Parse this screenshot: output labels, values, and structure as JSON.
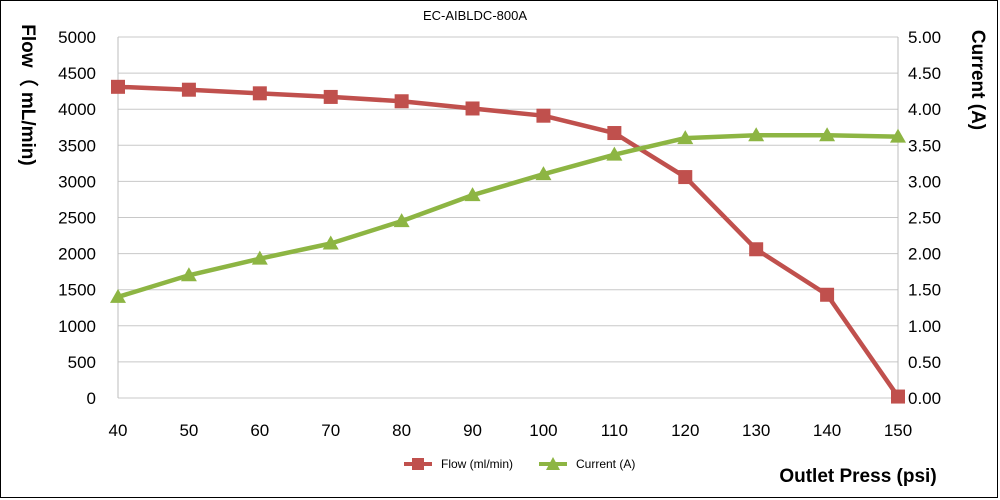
{
  "chart_data": {
    "type": "line",
    "title": "EC-AIBLDC-800A",
    "xlabel": "Outlet Press  (psi)",
    "ylabel_left": "Flow（ mL/min)",
    "ylabel_right": "Current   (A)",
    "x": [
      40,
      50,
      60,
      70,
      80,
      90,
      100,
      110,
      120,
      130,
      140,
      150
    ],
    "xlim": [
      40,
      150
    ],
    "ylim_left": [
      0,
      5000
    ],
    "ylim_right": [
      0,
      5
    ],
    "x_ticks": [
      "40",
      "50",
      "60",
      "70",
      "80",
      "90",
      "100",
      "110",
      "120",
      "130",
      "140",
      "150"
    ],
    "y_ticks_left": [
      "0",
      "500",
      "1000",
      "1500",
      "2000",
      "2500",
      "3000",
      "3500",
      "4000",
      "4500",
      "5000"
    ],
    "y_ticks_right": [
      "0.00",
      "0.50",
      "1.00",
      "1.50",
      "2.00",
      "2.50",
      "3.00",
      "3.50",
      "4.00",
      "4.50",
      "5.00"
    ],
    "grid": "horizontal",
    "legend_position": "bottom",
    "series": [
      {
        "name": "Flow (ml/min)",
        "axis": "left",
        "marker": "square",
        "color": "#C0504D",
        "values": [
          4310,
          4270,
          4220,
          4170,
          4110,
          4010,
          3910,
          3670,
          3060,
          2060,
          1430,
          20
        ]
      },
      {
        "name": "Current   (A)",
        "axis": "right",
        "marker": "triangle",
        "color": "#8DB543",
        "values": [
          1.4,
          1.7,
          1.93,
          2.14,
          2.45,
          2.81,
          3.1,
          3.37,
          3.6,
          3.64,
          3.64,
          3.62
        ]
      }
    ]
  }
}
